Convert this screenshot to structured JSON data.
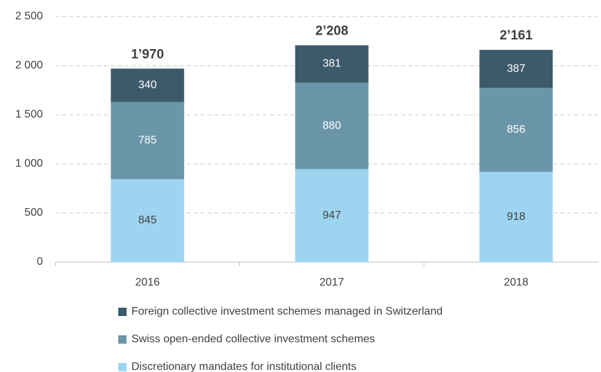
{
  "chart_data": {
    "type": "stacked_bar",
    "categories": [
      "2016",
      "2017",
      "2018"
    ],
    "series": [
      {
        "name": "Discretionary mandates for institutional clients",
        "color": "#9dd5f0",
        "label_color": "#404040",
        "values": [
          845,
          947,
          918
        ]
      },
      {
        "name": "Swiss open-ended collective investment schemes",
        "color": "#6b96aa",
        "label_color": "#ffffff",
        "values": [
          785,
          880,
          856
        ]
      },
      {
        "name": "Foreign collective investment schemes managed in Switzerland",
        "color": "#3d5a6b",
        "label_color": "#ffffff",
        "values": [
          340,
          381,
          387
        ]
      }
    ],
    "totals": [
      1970,
      2208,
      2161
    ],
    "total_labels": [
      "1’970",
      "2’208",
      "2’161"
    ],
    "ylim": [
      0,
      2500
    ],
    "yticks": [
      0,
      500,
      {
        "value": 1000,
        "label": "1 000"
      },
      {
        "value": 1500,
        "label": "1 500"
      },
      {
        "value": 2000,
        "label": "2 000"
      },
      {
        "value": 2500,
        "label": "2 500"
      }
    ],
    "grid": true
  }
}
